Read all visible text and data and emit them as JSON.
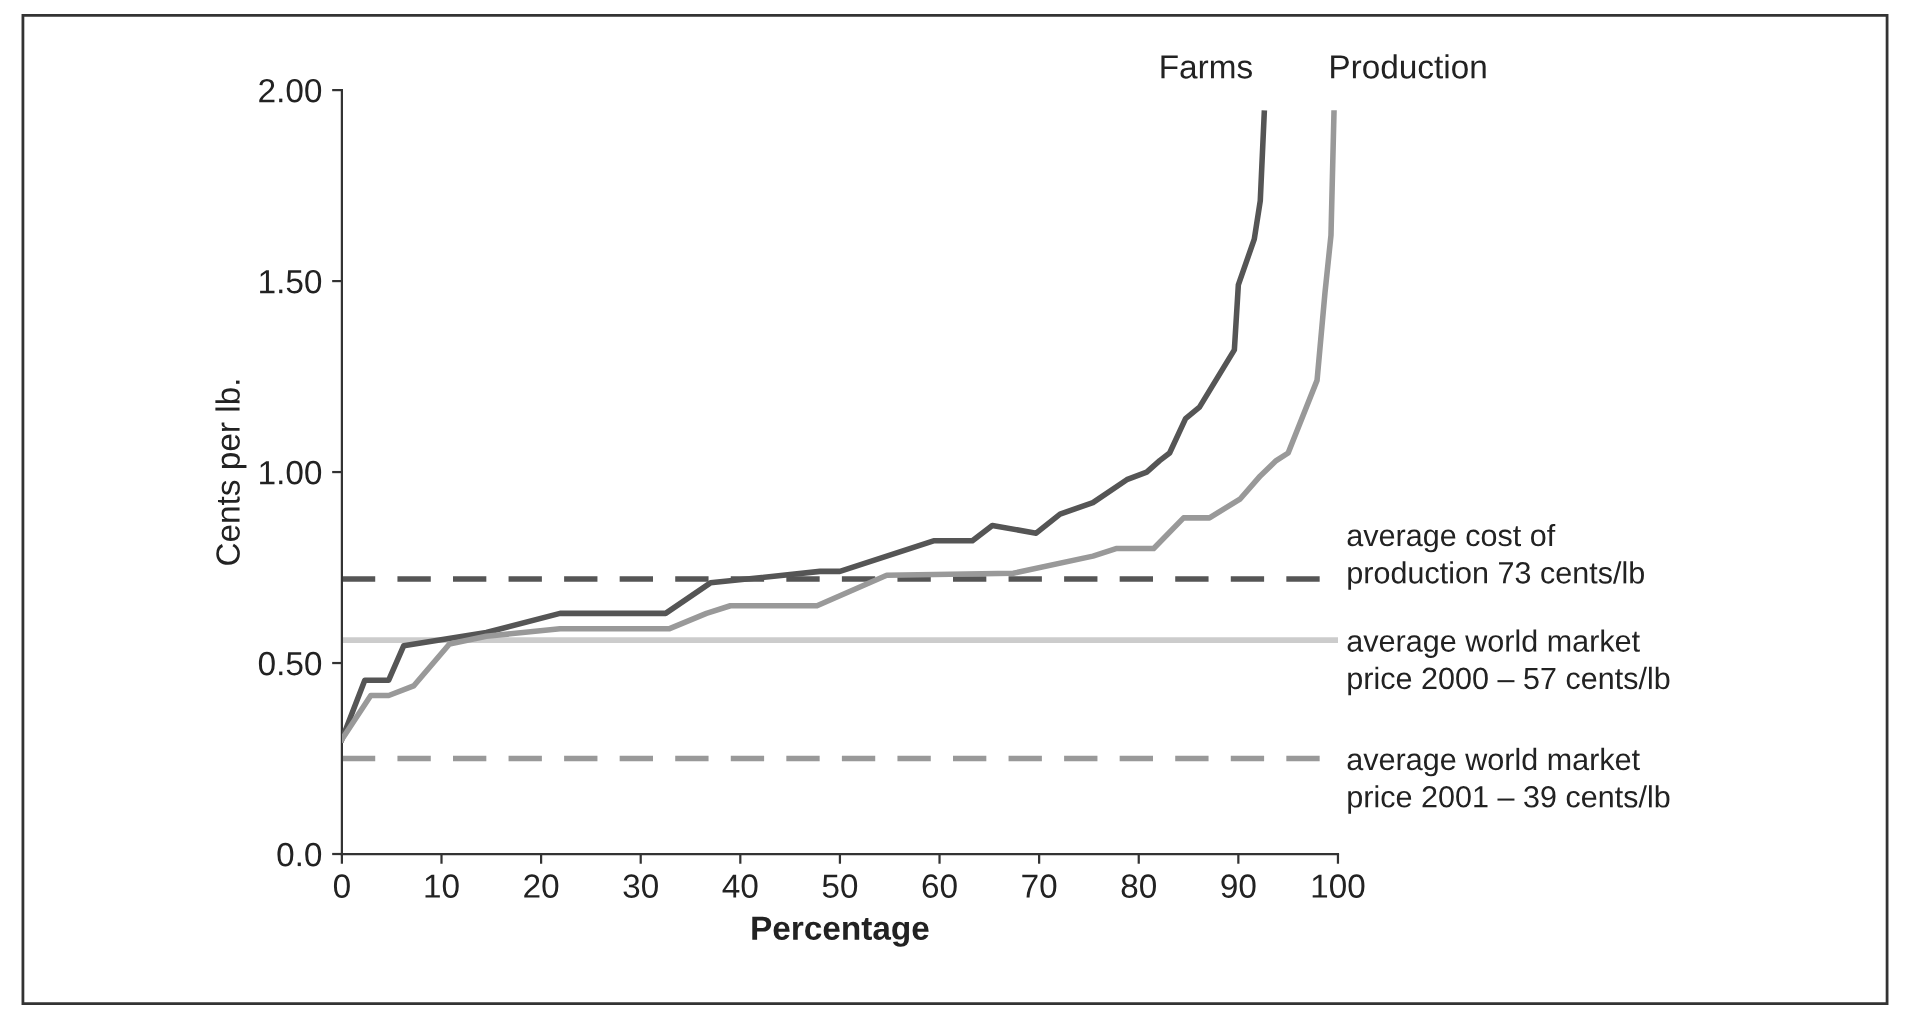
{
  "chart_data": {
    "type": "line",
    "xlabel": "Percentage",
    "ylabel": "Cents per lb.",
    "xlim": [
      0,
      100
    ],
    "xticks": [
      0,
      10,
      20,
      30,
      40,
      50,
      60,
      70,
      80,
      90,
      100
    ],
    "ylim": [
      0,
      2.0
    ],
    "yticks": [
      {
        "value": 0,
        "label": "0.0"
      },
      {
        "value": 0.5,
        "label": "0.50"
      },
      {
        "value": 1.0,
        "label": "1.00"
      },
      {
        "value": 1.5,
        "label": "1.50"
      },
      {
        "value": 2.0,
        "label": "2.00"
      }
    ],
    "grid": false,
    "legend": false,
    "marker": "none",
    "series": [
      {
        "name": "Farms",
        "color": "#555555",
        "x": [
          0,
          2.3,
          4.7,
          6.2,
          14.5,
          21.9,
          32.5,
          37,
          48,
          50,
          59.4,
          63.3,
          65.3,
          69.7,
          72.1,
          75.4,
          78.8,
          80.8,
          82.1,
          83.1,
          84.7,
          86.1,
          89.6,
          90.0,
          91.6,
          92.2,
          92.6
        ],
        "values": [
          0.3,
          0.455,
          0.455,
          0.545,
          0.58,
          0.63,
          0.63,
          0.71,
          0.74,
          0.74,
          0.82,
          0.82,
          0.86,
          0.84,
          0.89,
          0.92,
          0.98,
          1.0,
          1.03,
          1.05,
          1.14,
          1.17,
          1.32,
          1.49,
          1.61,
          1.71,
          1.94
        ]
      },
      {
        "name": "Production",
        "color": "#999999",
        "x": [
          0,
          2.9,
          4.7,
          7.2,
          10.8,
          14.5,
          21.9,
          32.9,
          36.6,
          39,
          47.7,
          54.7,
          67.4,
          75.4,
          77.8,
          81.5,
          84.5,
          87.1,
          90.2,
          92.2,
          93.8,
          95,
          97.9,
          98.7,
          99.3,
          99.6
        ],
        "values": [
          0.3,
          0.415,
          0.415,
          0.44,
          0.55,
          0.57,
          0.59,
          0.59,
          0.63,
          0.65,
          0.65,
          0.73,
          0.735,
          0.78,
          0.8,
          0.8,
          0.88,
          0.88,
          0.93,
          0.99,
          1.03,
          1.05,
          1.24,
          1.47,
          1.62,
          1.94
        ]
      }
    ],
    "ref_lines": [
      {
        "axis": "y",
        "value": 0.72,
        "label": "average cost of\nproduction 73 cents/lb",
        "color": "#555555",
        "line_style": "dashed"
      },
      {
        "axis": "y",
        "value": 0.56,
        "label": "average world market\nprice 2000 – 57 cents/lb",
        "color": "#cccccc",
        "line_style": "solid"
      },
      {
        "axis": "y",
        "value": 0.25,
        "label": "average world market\nprice 2001 – 39 cents/lb",
        "color": "#999999",
        "line_style": "dashed"
      }
    ]
  }
}
